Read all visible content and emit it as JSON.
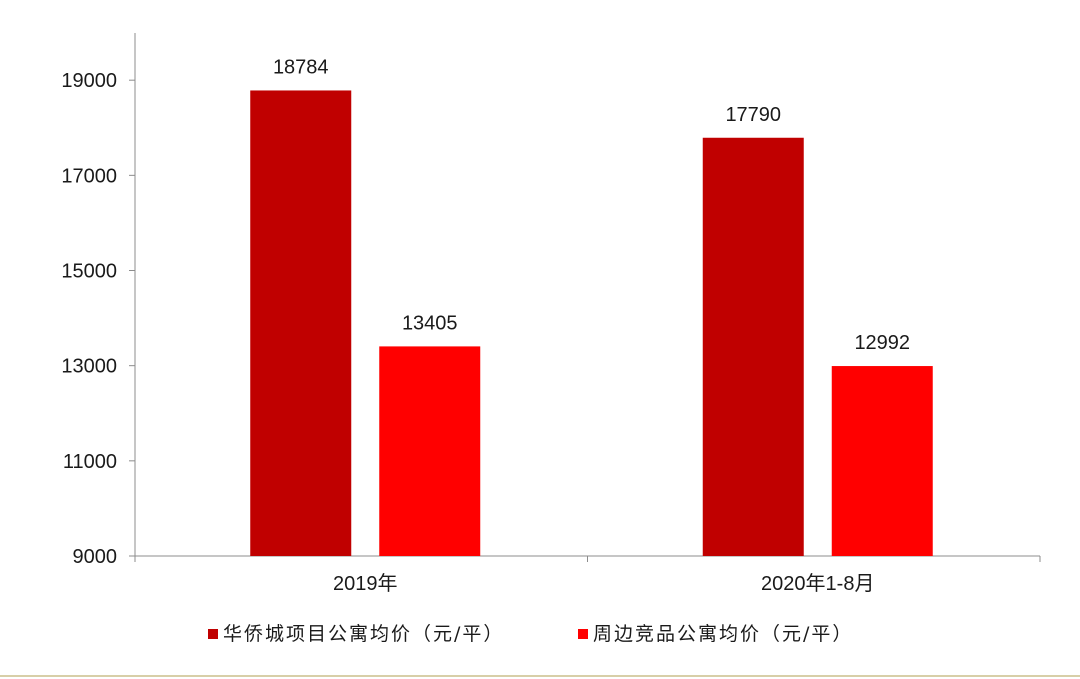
{
  "chart_data": {
    "type": "bar",
    "categories": [
      "2019年",
      "2020年1-8月"
    ],
    "series": [
      {
        "name": "华侨城项目公寓均价（元/平）",
        "values": [
          18784,
          17790
        ],
        "color": "#c00000"
      },
      {
        "name": "周边竞品公寓均价（元/平）",
        "values": [
          13405,
          12992
        ],
        "color": "#ff0000"
      }
    ],
    "ylim": [
      9000,
      19000
    ],
    "yticks": [
      9000,
      11000,
      13000,
      15000,
      17000,
      19000
    ],
    "data_labels": true,
    "legend_position": "bottom",
    "grid": false
  }
}
